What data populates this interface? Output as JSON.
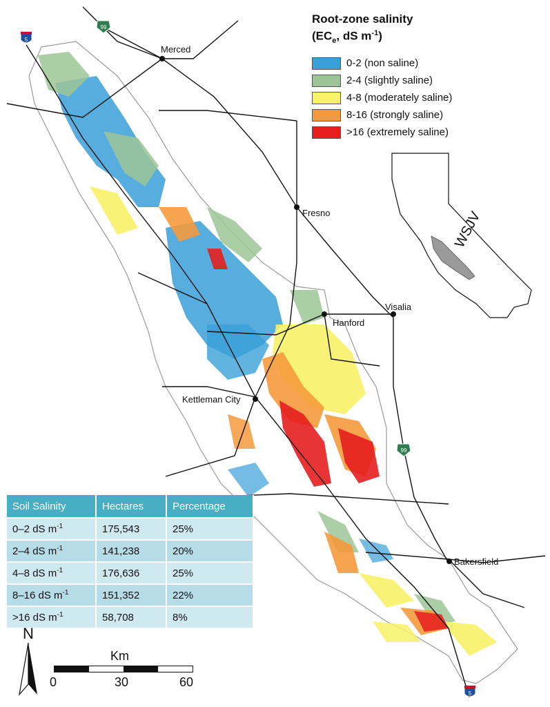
{
  "legend": {
    "title_line1": "Root-zone salinity",
    "title_line2_prefix": "(EC",
    "title_line2_sub": "e",
    "title_line2_mid": ", dS m",
    "title_line2_sup": "-1",
    "title_line2_suffix": ")",
    "items": [
      {
        "label": "0-2 (non saline)",
        "color": "#3aa0d8"
      },
      {
        "label": "2-4 (slightly saline)",
        "color": "#9cc597"
      },
      {
        "label": "4-8 (moderately saline)",
        "color": "#f7f267"
      },
      {
        "label": "8-16 (strongly saline)",
        "color": "#f59a3c"
      },
      {
        "label": ">16 (extremely saline)",
        "color": "#e61e1e"
      }
    ]
  },
  "cities": {
    "merced": "Merced",
    "fresno": "Fresno",
    "visalia": "Visalia",
    "hanford": "Hanford",
    "kettleman": "Kettleman City",
    "bakersfield": "Bakersfield"
  },
  "highways": {
    "i5": "5",
    "ca99": "99"
  },
  "inset": {
    "region_label": "WSJV"
  },
  "table": {
    "headers": [
      "Soil Salinity",
      "Hectares",
      "Percentage"
    ],
    "rows": [
      {
        "range": "0–2 dS m",
        "unit_sup": "-1",
        "hectares": "175,543",
        "percentage": "25%"
      },
      {
        "range": "2–4 dS m",
        "unit_sup": "-1",
        "hectares": "141,238",
        "percentage": "20%"
      },
      {
        "range": "4–8 dS m",
        "unit_sup": "-1",
        "hectares": "176,636",
        "percentage": "25%"
      },
      {
        "range": "8–16 dS m",
        "unit_sup": "-1",
        "hectares": "151,352",
        "percentage": "22%"
      },
      {
        "range": ">16 dS m",
        "unit_sup": "-1",
        "hectares": "58,708",
        "percentage": "8%"
      }
    ]
  },
  "north_arrow": {
    "letter": "N"
  },
  "scale_bar": {
    "unit": "Km",
    "ticks": [
      "0",
      "30",
      "60"
    ]
  }
}
